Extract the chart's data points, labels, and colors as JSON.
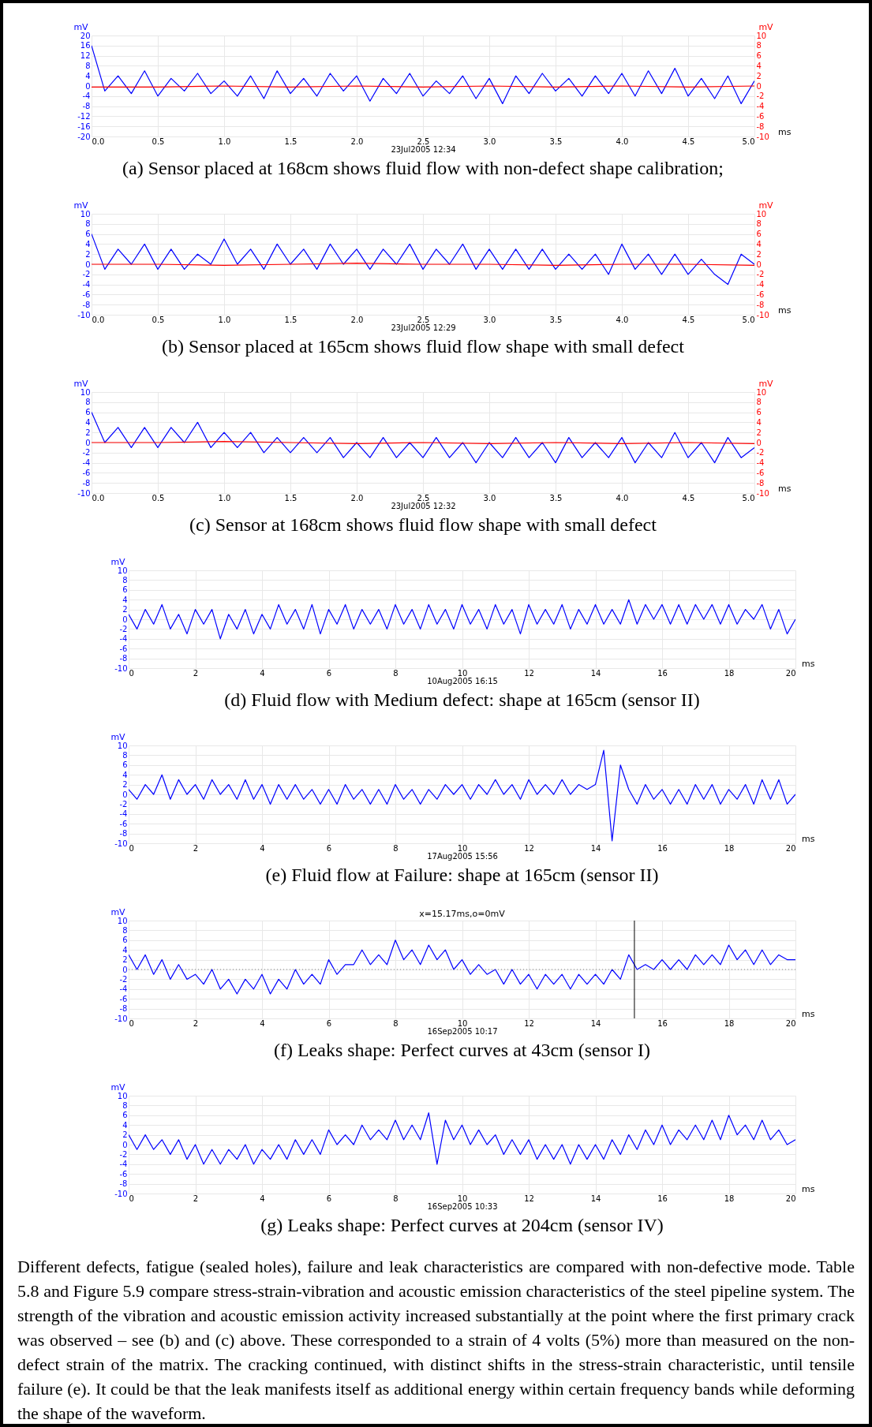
{
  "chart_data": [
    {
      "type": "line",
      "title": "(a) Sensor placed at 168cm shows fluid flow with non-defect shape calibration;",
      "annotations": [
        "23Jul2005   12:34"
      ],
      "xlabel": "ms",
      "ylabel": "mV",
      "y2label": "mV",
      "grid": true,
      "x": [
        0,
        0.1,
        0.2,
        0.3,
        0.4,
        0.5,
        0.6,
        0.7,
        0.8,
        0.9,
        1,
        1.1,
        1.2,
        1.3,
        1.4,
        1.5,
        1.6,
        1.7,
        1.8,
        1.9,
        2,
        2.1,
        2.2,
        2.3,
        2.4,
        2.5,
        2.6,
        2.7,
        2.8,
        2.9,
        3,
        3.1,
        3.2,
        3.3,
        3.4,
        3.5,
        3.6,
        3.7,
        3.8,
        3.9,
        4,
        4.1,
        4.2,
        4.3,
        4.4,
        4.5,
        4.6,
        4.7,
        4.8,
        4.9,
        5
      ],
      "xlim": [
        0,
        5
      ],
      "xticks": [
        {
          "value": 0,
          "label": "0.0"
        },
        0.5,
        {
          "value": 1,
          "label": "1.0"
        },
        1.5,
        {
          "value": 2,
          "label": "2.0"
        },
        2.5,
        {
          "value": 3,
          "label": "3.0"
        },
        3.5,
        {
          "value": 4,
          "label": "4.0"
        },
        4.5,
        {
          "value": 5,
          "label": "5.0"
        }
      ],
      "ylim": [
        -20,
        20
      ],
      "yticks": [
        -20,
        -16,
        -12,
        -8,
        -4,
        0,
        4,
        8,
        12,
        16,
        20
      ],
      "y2lim": [
        -10,
        10
      ],
      "y2ticks": [
        -10,
        -8,
        -6,
        -4,
        -2,
        0,
        2,
        4,
        6,
        8,
        10
      ],
      "series": [
        {
          "color": "#0000ff",
          "values": [
            16,
            -2,
            4,
            -3,
            6,
            -4,
            3,
            -2,
            5,
            -3,
            2,
            -4,
            4,
            -5,
            6,
            -3,
            3,
            -4,
            5,
            -2,
            4,
            -6,
            3,
            -3,
            5,
            -4,
            2,
            -3,
            4,
            -5,
            3,
            -7,
            4,
            -3,
            5,
            -2,
            3,
            -4,
            4,
            -3,
            5,
            -4,
            6,
            -3,
            7,
            -4,
            3,
            -5,
            4,
            -7,
            2
          ]
        },
        {
          "color": "#ff0000",
          "axis": "y2",
          "x": [
            0,
            0.5,
            1,
            1.5,
            2,
            2.5,
            3,
            3.5,
            4,
            4.5,
            5
          ],
          "values": [
            -0.2,
            -0.2,
            0,
            -0.2,
            0,
            -0.2,
            0,
            -0.2,
            0,
            -0.2,
            0
          ]
        }
      ]
    },
    {
      "type": "line",
      "title": "(b) Sensor placed at 165cm shows fluid flow shape with small defect",
      "annotations": [
        "23Jul2005   12:29"
      ],
      "xlabel": "ms",
      "ylabel": "mV",
      "y2label": "mV",
      "grid": true,
      "x": [
        0,
        0.1,
        0.2,
        0.3,
        0.4,
        0.5,
        0.6,
        0.7,
        0.8,
        0.9,
        1,
        1.1,
        1.2,
        1.3,
        1.4,
        1.5,
        1.6,
        1.7,
        1.8,
        1.9,
        2,
        2.1,
        2.2,
        2.3,
        2.4,
        2.5,
        2.6,
        2.7,
        2.8,
        2.9,
        3,
        3.1,
        3.2,
        3.3,
        3.4,
        3.5,
        3.6,
        3.7,
        3.8,
        3.9,
        4,
        4.1,
        4.2,
        4.3,
        4.4,
        4.5,
        4.6,
        4.7,
        4.8,
        4.9,
        5
      ],
      "xlim": [
        0,
        5
      ],
      "xticks": [
        {
          "value": 0,
          "label": "0.0"
        },
        0.5,
        {
          "value": 1,
          "label": "1.0"
        },
        1.5,
        {
          "value": 2,
          "label": "2.0"
        },
        2.5,
        {
          "value": 3,
          "label": "3.0"
        },
        3.5,
        {
          "value": 4,
          "label": "4.0"
        },
        4.5,
        {
          "value": 5,
          "label": "5.0"
        }
      ],
      "ylim": [
        -10,
        10
      ],
      "yticks": [
        -10,
        -8,
        -6,
        -4,
        -2,
        0,
        2,
        4,
        6,
        8,
        10
      ],
      "y2lim": [
        -10,
        10
      ],
      "y2ticks": [
        -10,
        -8,
        -6,
        -4,
        -2,
        0,
        2,
        4,
        6,
        8,
        10
      ],
      "series": [
        {
          "color": "#0000ff",
          "values": [
            6,
            -1,
            3,
            0,
            4,
            -1,
            3,
            -1,
            2,
            0,
            5,
            0,
            3,
            -1,
            4,
            0,
            3,
            -1,
            4,
            0,
            3,
            -1,
            3,
            0,
            4,
            -1,
            3,
            0,
            4,
            -1,
            3,
            -1,
            3,
            -1,
            3,
            -1,
            2,
            -1,
            2,
            -2,
            4,
            -1,
            2,
            -2,
            2,
            -2,
            1,
            -2,
            -4,
            2,
            0
          ]
        },
        {
          "color": "#ff0000",
          "axis": "y2",
          "x": [
            0,
            0.5,
            1,
            1.5,
            2,
            2.5,
            3,
            3.5,
            4,
            4.5,
            5
          ],
          "values": [
            0,
            0,
            -0.2,
            0,
            0.2,
            0,
            0,
            -0.2,
            0,
            0,
            -0.2
          ]
        }
      ]
    },
    {
      "type": "line",
      "title": "(c) Sensor at 168cm shows fluid flow shape with small defect",
      "annotations": [
        "23Jul2005   12:32"
      ],
      "xlabel": "ms",
      "ylabel": "mV",
      "y2label": "mV",
      "grid": true,
      "x": [
        0,
        0.1,
        0.2,
        0.3,
        0.4,
        0.5,
        0.6,
        0.7,
        0.8,
        0.9,
        1,
        1.1,
        1.2,
        1.3,
        1.4,
        1.5,
        1.6,
        1.7,
        1.8,
        1.9,
        2,
        2.1,
        2.2,
        2.3,
        2.4,
        2.5,
        2.6,
        2.7,
        2.8,
        2.9,
        3,
        3.1,
        3.2,
        3.3,
        3.4,
        3.5,
        3.6,
        3.7,
        3.8,
        3.9,
        4,
        4.1,
        4.2,
        4.3,
        4.4,
        4.5,
        4.6,
        4.7,
        4.8,
        4.9,
        5
      ],
      "xlim": [
        0,
        5
      ],
      "xticks": [
        {
          "value": 0,
          "label": "0.0"
        },
        0.5,
        {
          "value": 1,
          "label": "1.0"
        },
        1.5,
        {
          "value": 2,
          "label": "2.0"
        },
        2.5,
        {
          "value": 3,
          "label": "3.0"
        },
        3.5,
        {
          "value": 4,
          "label": "4.0"
        },
        4.5,
        {
          "value": 5,
          "label": "5.0"
        }
      ],
      "ylim": [
        -10,
        10
      ],
      "yticks": [
        -10,
        -8,
        -6,
        -4,
        -2,
        0,
        2,
        4,
        6,
        8,
        10
      ],
      "y2lim": [
        -10,
        10
      ],
      "y2ticks": [
        -10,
        -8,
        -6,
        -4,
        -2,
        0,
        2,
        4,
        6,
        8,
        10
      ],
      "series": [
        {
          "color": "#0000ff",
          "values": [
            6,
            0,
            3,
            -1,
            3,
            -1,
            3,
            0,
            4,
            -1,
            2,
            -1,
            2,
            -2,
            1,
            -2,
            1,
            -2,
            1,
            -3,
            0,
            -3,
            1,
            -3,
            0,
            -3,
            1,
            -3,
            0,
            -4,
            0,
            -3,
            1,
            -3,
            0,
            -4,
            1,
            -3,
            0,
            -3,
            1,
            -4,
            0,
            -3,
            2,
            -3,
            0,
            -4,
            1,
            -3,
            -1
          ]
        },
        {
          "color": "#ff0000",
          "axis": "y2",
          "x": [
            0,
            0.5,
            1,
            1.5,
            2,
            2.5,
            3,
            3.5,
            4,
            4.5,
            5
          ],
          "values": [
            0,
            0,
            0.2,
            0,
            -0.2,
            0,
            -0.2,
            0,
            -0.2,
            0,
            -0.2
          ]
        }
      ]
    },
    {
      "type": "line",
      "title": "(d) Fluid flow with Medium defect: shape at 165cm (sensor II)",
      "annotations": [
        "10Aug2005   16:15"
      ],
      "xlabel": "ms",
      "ylabel": "mV",
      "grid": true,
      "x": [
        0,
        0.25,
        0.5,
        0.75,
        1,
        1.25,
        1.5,
        1.75,
        2,
        2.25,
        2.5,
        2.75,
        3,
        3.25,
        3.5,
        3.75,
        4,
        4.25,
        4.5,
        4.75,
        5,
        5.25,
        5.5,
        5.75,
        6,
        6.25,
        6.5,
        6.75,
        7,
        7.25,
        7.5,
        7.75,
        8,
        8.25,
        8.5,
        8.75,
        9,
        9.25,
        9.5,
        9.75,
        10,
        10.25,
        10.5,
        10.75,
        11,
        11.25,
        11.5,
        11.75,
        12,
        12.25,
        12.5,
        12.75,
        13,
        13.25,
        13.5,
        13.75,
        14,
        14.25,
        14.5,
        14.75,
        15,
        15.25,
        15.5,
        15.75,
        16,
        16.25,
        16.5,
        16.75,
        17,
        17.25,
        17.5,
        17.75,
        18,
        18.25,
        18.5,
        18.75,
        19,
        19.25,
        19.5,
        19.75,
        20
      ],
      "xlim": [
        0,
        20
      ],
      "xticks": [
        0,
        2,
        4,
        6,
        8,
        10,
        12,
        14,
        16,
        18,
        20
      ],
      "ylim": [
        -10,
        10
      ],
      "yticks": [
        -10,
        -8,
        -6,
        -4,
        -2,
        0,
        2,
        4,
        6,
        8,
        10
      ],
      "series": [
        {
          "color": "#0000ff",
          "values": [
            1,
            -2,
            2,
            -1,
            3,
            -2,
            1,
            -3,
            2,
            -1,
            2,
            -4,
            1,
            -2,
            2,
            -3,
            1,
            -2,
            3,
            -1,
            2,
            -2,
            3,
            -3,
            2,
            -1,
            3,
            -2,
            2,
            -1,
            2,
            -2,
            3,
            -1,
            2,
            -2,
            3,
            -1,
            2,
            -2,
            3,
            -1,
            2,
            -2,
            3,
            -1,
            2,
            -3,
            3,
            -1,
            2,
            -1,
            3,
            -2,
            2,
            -1,
            3,
            -1,
            2,
            -1,
            4,
            -1,
            3,
            0,
            3,
            -1,
            3,
            -1,
            3,
            0,
            3,
            -1,
            3,
            -1,
            2,
            0,
            3,
            -2,
            2,
            -3,
            0
          ]
        }
      ]
    },
    {
      "type": "line",
      "title": "(e) Fluid flow at Failure: shape at 165cm (sensor II)",
      "annotations": [
        "17Aug2005   15:56"
      ],
      "xlabel": "ms",
      "ylabel": "mV",
      "grid": true,
      "x": [
        0,
        0.25,
        0.5,
        0.75,
        1,
        1.25,
        1.5,
        1.75,
        2,
        2.25,
        2.5,
        2.75,
        3,
        3.25,
        3.5,
        3.75,
        4,
        4.25,
        4.5,
        4.75,
        5,
        5.25,
        5.5,
        5.75,
        6,
        6.25,
        6.5,
        6.75,
        7,
        7.25,
        7.5,
        7.75,
        8,
        8.25,
        8.5,
        8.75,
        9,
        9.25,
        9.5,
        9.75,
        10,
        10.25,
        10.5,
        10.75,
        11,
        11.25,
        11.5,
        11.75,
        12,
        12.25,
        12.5,
        12.75,
        13,
        13.25,
        13.5,
        13.75,
        14,
        14.25,
        14.5,
        14.75,
        15,
        15.25,
        15.5,
        15.75,
        16,
        16.25,
        16.5,
        16.75,
        17,
        17.25,
        17.5,
        17.75,
        18,
        18.25,
        18.5,
        18.75,
        19,
        19.25,
        19.5,
        19.75,
        20
      ],
      "xlim": [
        0,
        20
      ],
      "xticks": [
        0,
        2,
        4,
        6,
        8,
        10,
        12,
        14,
        16,
        18,
        20
      ],
      "ylim": [
        -10,
        10
      ],
      "yticks": [
        -10,
        -8,
        -6,
        -4,
        -2,
        0,
        2,
        4,
        6,
        8,
        10
      ],
      "series": [
        {
          "color": "#0000ff",
          "values": [
            1,
            -1,
            2,
            0,
            4,
            -1,
            3,
            0,
            2,
            -1,
            3,
            0,
            2,
            -1,
            3,
            -1,
            2,
            -2,
            2,
            -1,
            2,
            -1,
            1,
            -2,
            1,
            -2,
            2,
            -1,
            1,
            -2,
            1,
            -2,
            2,
            -1,
            1,
            -2,
            1,
            -1,
            2,
            0,
            2,
            -1,
            2,
            0,
            3,
            0,
            2,
            -1,
            3,
            0,
            2,
            0,
            3,
            0,
            2,
            1,
            2,
            9,
            -9.5,
            6,
            1,
            -2,
            2,
            -1,
            1,
            -2,
            1,
            -2,
            2,
            -1,
            2,
            -2,
            1,
            -1,
            2,
            -2,
            3,
            -1,
            3,
            -2,
            0
          ]
        }
      ]
    },
    {
      "type": "line",
      "title": "(f) Leaks shape: Perfect curves at 43cm (sensor I)",
      "annotations": [
        "16Sep2005   10:17"
      ],
      "xlabel": "ms",
      "ylabel": "mV",
      "grid": true,
      "x": [
        0,
        0.25,
        0.5,
        0.75,
        1,
        1.25,
        1.5,
        1.75,
        2,
        2.25,
        2.5,
        2.75,
        3,
        3.25,
        3.5,
        3.75,
        4,
        4.25,
        4.5,
        4.75,
        5,
        5.25,
        5.5,
        5.75,
        6,
        6.25,
        6.5,
        6.75,
        7,
        7.25,
        7.5,
        7.75,
        8,
        8.25,
        8.5,
        8.75,
        9,
        9.25,
        9.5,
        9.75,
        10,
        10.25,
        10.5,
        10.75,
        11,
        11.25,
        11.5,
        11.75,
        12,
        12.25,
        12.5,
        12.75,
        13,
        13.25,
        13.5,
        13.75,
        14,
        14.25,
        14.5,
        14.75,
        15,
        15.25,
        15.5,
        15.75,
        16,
        16.25,
        16.5,
        16.75,
        17,
        17.25,
        17.5,
        17.75,
        18,
        18.25,
        18.5,
        18.75,
        19,
        19.25,
        19.5,
        19.75,
        20
      ],
      "xlim": [
        0,
        20
      ],
      "xticks": [
        0,
        2,
        4,
        6,
        8,
        10,
        12,
        14,
        16,
        18,
        20
      ],
      "ylim": [
        -10,
        10
      ],
      "yticks": [
        -10,
        -8,
        -6,
        -4,
        -2,
        0,
        2,
        4,
        6,
        8,
        10
      ],
      "ref_lines": [
        {
          "axis": "x",
          "value": 15.17,
          "label": "x=15.17ms,o=0mV",
          "color": "#000000"
        },
        {
          "axis": "y",
          "value": 0,
          "color": "#808080",
          "line_style": "dotted"
        }
      ],
      "series": [
        {
          "color": "#0000ff",
          "values": [
            3,
            0,
            3,
            -1,
            2,
            -2,
            1,
            -2,
            -1,
            -3,
            0,
            -4,
            -2,
            -5,
            -2,
            -4,
            -1,
            -5,
            -2,
            -4,
            0,
            -3,
            -1,
            -3,
            2,
            -1,
            1,
            1,
            4,
            1,
            3,
            1,
            6,
            2,
            4,
            1,
            5,
            2,
            4,
            0,
            2,
            -1,
            1,
            -1,
            0,
            -3,
            0,
            -3,
            -1,
            -4,
            -1,
            -3,
            -1,
            -4,
            -1,
            -3,
            -1,
            -3,
            0,
            -2,
            3,
            0,
            1,
            0,
            2,
            0,
            2,
            0,
            3,
            1,
            3,
            1,
            5,
            2,
            4,
            1,
            4,
            1,
            3,
            2,
            2
          ]
        }
      ]
    },
    {
      "type": "line",
      "title": "(g) Leaks shape: Perfect curves at 204cm (sensor IV)",
      "annotations": [
        "16Sep2005   10:33"
      ],
      "xlabel": "ms",
      "ylabel": "mV",
      "grid": true,
      "x": [
        0,
        0.25,
        0.5,
        0.75,
        1,
        1.25,
        1.5,
        1.75,
        2,
        2.25,
        2.5,
        2.75,
        3,
        3.25,
        3.5,
        3.75,
        4,
        4.25,
        4.5,
        4.75,
        5,
        5.25,
        5.5,
        5.75,
        6,
        6.25,
        6.5,
        6.75,
        7,
        7.25,
        7.5,
        7.75,
        8,
        8.25,
        8.5,
        8.75,
        9,
        9.25,
        9.5,
        9.75,
        10,
        10.25,
        10.5,
        10.75,
        11,
        11.25,
        11.5,
        11.75,
        12,
        12.25,
        12.5,
        12.75,
        13,
        13.25,
        13.5,
        13.75,
        14,
        14.25,
        14.5,
        14.75,
        15,
        15.25,
        15.5,
        15.75,
        16,
        16.25,
        16.5,
        16.75,
        17,
        17.25,
        17.5,
        17.75,
        18,
        18.25,
        18.5,
        18.75,
        19,
        19.25,
        19.5,
        19.75,
        20
      ],
      "xlim": [
        0,
        20
      ],
      "xticks": [
        0,
        2,
        4,
        6,
        8,
        10,
        12,
        14,
        16,
        18,
        20
      ],
      "ylim": [
        -10,
        10
      ],
      "yticks": [
        -10,
        -8,
        -6,
        -4,
        -2,
        0,
        2,
        4,
        6,
        8,
        10
      ],
      "series": [
        {
          "color": "#0000ff",
          "values": [
            2,
            -1,
            2,
            -1,
            1,
            -2,
            1,
            -3,
            0,
            -4,
            -1,
            -4,
            -1,
            -3,
            0,
            -4,
            -1,
            -3,
            0,
            -3,
            1,
            -2,
            1,
            -2,
            3,
            0,
            2,
            0,
            4,
            1,
            3,
            1,
            5,
            1,
            4,
            1,
            6.5,
            -4,
            5,
            1,
            4,
            0,
            3,
            0,
            2,
            -2,
            1,
            -2,
            1,
            -3,
            0,
            -3,
            0,
            -4,
            0,
            -3,
            0,
            -3,
            1,
            -2,
            2,
            -1,
            3,
            0,
            4,
            0,
            3,
            1,
            4,
            1,
            5,
            1,
            6,
            2,
            4,
            1,
            5,
            1,
            3,
            0,
            1
          ]
        }
      ]
    },
    {
      "type": "other",
      "annotations": [
        "Different defects, fatigue (sealed holes), failure and leak characteristics are compared with non-defective mode. Table 5.8 and Figure 5.9 compare stress-strain-vibration and acoustic emission characteristics of the steel pipeline system.  The strength of the vibration and acoustic emission activity increased substantially at the point where the first primary crack was observed – see (b) and (c) above. These corresponded to a strain of 4 volts (5%) more than measured on the non-defect strain of the matrix. The cracking continued, with distinct shifts in the stress-strain characteristic, until tensile failure (e). It could be that the leak manifests itself as additional energy within certain frequency bands while deforming the shape of the waveform."
      ]
    }
  ]
}
